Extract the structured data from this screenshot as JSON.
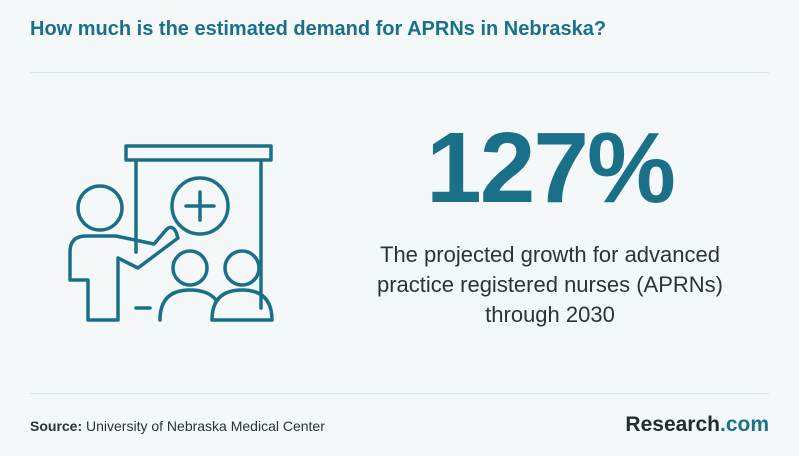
{
  "header": {
    "title": "How much is the estimated demand for APRNs in Nebraska?"
  },
  "stat": {
    "value": "127%",
    "description": "The projected growth for advanced practice registered nurses (APRNs) through 2030"
  },
  "illustration": {
    "icon": "presentation-icon",
    "color": "#1b7089"
  },
  "footer": {
    "source_label": "Source:",
    "source_text": "University of Nebraska Medical Center",
    "brand_main": "Research",
    "brand_suffix": ".com"
  },
  "colors": {
    "accent": "#1b7089",
    "background": "#f4f8f9",
    "text": "#2a3438"
  }
}
